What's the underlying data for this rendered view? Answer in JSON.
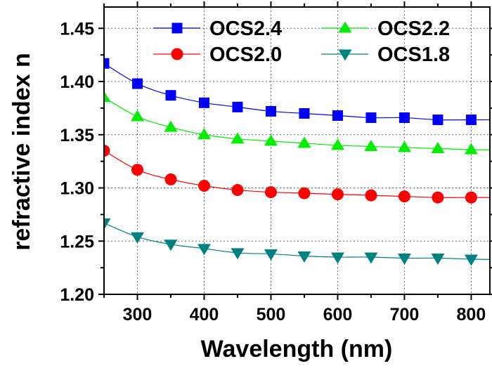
{
  "chart_data": {
    "type": "line",
    "title": "",
    "xlabel": "Wavelength (nm)",
    "ylabel": "refractive index n",
    "xlim": [
      250,
      828
    ],
    "ylim": [
      1.2,
      1.47
    ],
    "xticks": [
      300,
      400,
      500,
      600,
      700,
      800
    ],
    "xtick_labels": [
      "300",
      "400",
      "500",
      "600",
      "700",
      "800"
    ],
    "yticks": [
      1.2,
      1.25,
      1.3,
      1.35,
      1.4,
      1.45
    ],
    "ytick_labels": [
      "1.20",
      "1.25",
      "1.30",
      "1.35",
      "1.40",
      "1.45"
    ],
    "grid": true,
    "legend_placement": "top",
    "x": [
      250,
      300,
      350,
      400,
      450,
      500,
      550,
      600,
      650,
      700,
      750,
      800
    ],
    "series": [
      {
        "name": "OCS2.4",
        "color": "#0000ff",
        "marker": "square",
        "values": [
          1.417,
          1.398,
          1.387,
          1.38,
          1.376,
          1.372,
          1.37,
          1.368,
          1.366,
          1.366,
          1.364,
          1.364
        ]
      },
      {
        "name": "OCS2.2",
        "color": "#00ee00",
        "marker": "triangle-up",
        "values": [
          1.385,
          1.367,
          1.357,
          1.35,
          1.346,
          1.344,
          1.342,
          1.34,
          1.339,
          1.338,
          1.337,
          1.336
        ]
      },
      {
        "name": "OCS2.0",
        "color": "#ff0000",
        "marker": "circle",
        "values": [
          1.335,
          1.317,
          1.308,
          1.302,
          1.298,
          1.296,
          1.295,
          1.294,
          1.293,
          1.292,
          1.291,
          1.291
        ]
      },
      {
        "name": "OCS1.8",
        "color": "#008080",
        "marker": "triangle-down",
        "values": [
          1.267,
          1.254,
          1.247,
          1.243,
          1.239,
          1.238,
          1.236,
          1.235,
          1.235,
          1.234,
          1.234,
          1.233
        ]
      }
    ]
  }
}
